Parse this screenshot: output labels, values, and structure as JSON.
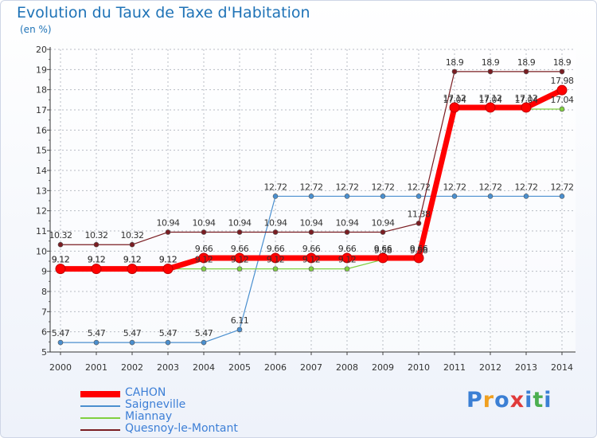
{
  "chart_data": {
    "type": "line",
    "title": "Evolution du Taux de Taxe d'Habitation",
    "subtitle": "(en %)",
    "x": [
      "2000",
      "2001",
      "2002",
      "2003",
      "2004",
      "2005",
      "2006",
      "2007",
      "2008",
      "2009",
      "2010",
      "2011",
      "2012",
      "2013",
      "2014"
    ],
    "ylim": [
      5,
      20
    ],
    "y_ticks": [
      5,
      6,
      7,
      8,
      9,
      10,
      11,
      12,
      13,
      14,
      15,
      16,
      17,
      18,
      19,
      20
    ],
    "grid": true,
    "legend_position": "bottom-left",
    "series": [
      {
        "name": "CAHON",
        "color": "#ff0000",
        "values": [
          9.12,
          9.12,
          9.12,
          9.12,
          9.66,
          9.66,
          9.66,
          9.66,
          9.66,
          9.66,
          9.66,
          17.12,
          17.12,
          17.12,
          17.98
        ],
        "labels": [
          "9.12",
          "9.12",
          "9.12",
          "9.12",
          "9.66",
          "9.66",
          "9.66",
          "9.66",
          "9.66",
          "9.66",
          "9.66",
          "17.12",
          "17.12",
          "17.12",
          "17.98"
        ]
      },
      {
        "name": "Saigneville",
        "color": "#4a8fcf",
        "values": [
          5.47,
          5.47,
          5.47,
          5.47,
          5.47,
          6.11,
          12.72,
          12.72,
          12.72,
          12.72,
          12.72,
          12.72,
          12.72,
          12.72,
          12.72
        ],
        "labels": [
          "5.47",
          "5.47",
          "5.47",
          "5.47",
          "5.47",
          "6.11",
          "12.72",
          "12.72",
          "12.72",
          "12.72",
          "12.72",
          "12.72",
          "12.72",
          "12.72",
          "12.72"
        ]
      },
      {
        "name": "Miannay",
        "color": "#80d040",
        "values": [
          9.12,
          9.12,
          9.12,
          9.12,
          9.12,
          9.12,
          9.12,
          9.12,
          9.12,
          9.58,
          9.58,
          17.04,
          17.04,
          17.04,
          17.04
        ],
        "labels": [
          "9.12",
          "9.12",
          "9.12",
          "9.12",
          "9.12",
          "9.12",
          "9.12",
          "9.12",
          "9.12",
          "9.58",
          "9.58",
          "17.04",
          "17.04",
          "17.04",
          "17.04"
        ]
      },
      {
        "name": "Quesnoy-le-Montant",
        "color": "#7a1d22",
        "values": [
          10.32,
          10.32,
          10.32,
          10.94,
          10.94,
          10.94,
          10.94,
          10.94,
          10.94,
          10.94,
          11.38,
          18.9,
          18.9,
          18.9,
          18.9
        ],
        "labels": [
          "10.32",
          "10.32",
          "10.32",
          "10.94",
          "10.94",
          "10.94",
          "10.94",
          "10.94",
          "10.94",
          "10.94",
          "11.38",
          "18.9",
          "18.9",
          "18.9",
          "18.9"
        ]
      }
    ]
  },
  "brand": {
    "letters": [
      "P",
      "r",
      "o",
      "x",
      "i",
      "t",
      "i"
    ],
    "colors": [
      "#3b7fd4",
      "#f0a020",
      "#3b7fd4",
      "#e03a3a",
      "#3b7fd4",
      "#4caf50",
      "#3b7fd4"
    ]
  }
}
